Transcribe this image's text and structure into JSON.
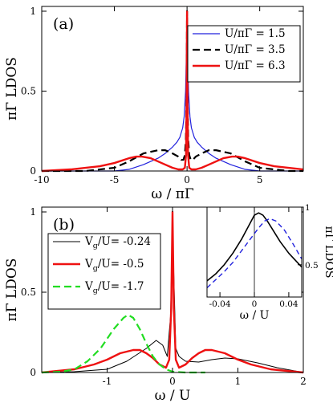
{
  "chart_data": [
    {
      "type": "line",
      "panel_label": "(a)",
      "xlabel": "ω / πΓ",
      "ylabel": "πΓ LDOS",
      "xlim": [
        -10,
        8
      ],
      "ylim": [
        0,
        1.03
      ],
      "xticks": [
        -10,
        -5,
        0,
        5
      ],
      "yticks": [
        0,
        0.5,
        1
      ],
      "legend_position": "top-right",
      "series": [
        {
          "name_parts": [
            "U/πΓ",
            " = 1.5"
          ],
          "color": "#2222dd",
          "dash": "none",
          "x": [
            -10,
            -7,
            -5,
            -4,
            -3,
            -2,
            -1.5,
            -1,
            -0.7,
            -0.5,
            -0.3,
            -0.2,
            -0.1,
            -0.05,
            0,
            0.05,
            0.1,
            0.2,
            0.3,
            0.5,
            0.7,
            1,
            1.5,
            2,
            3,
            4,
            5,
            7,
            8
          ],
          "y": [
            0.0,
            0.0,
            0.0,
            0.01,
            0.04,
            0.08,
            0.11,
            0.15,
            0.18,
            0.21,
            0.27,
            0.34,
            0.5,
            0.72,
            1.0,
            0.72,
            0.5,
            0.34,
            0.27,
            0.21,
            0.18,
            0.15,
            0.11,
            0.08,
            0.04,
            0.01,
            0.0,
            0.0,
            0.0
          ]
        },
        {
          "name_parts": [
            "U/πΓ",
            " = 3.5"
          ],
          "color": "#000000",
          "dash": "9,5",
          "x": [
            -10,
            -7,
            -5,
            -4,
            -3,
            -2,
            -1.5,
            -1,
            -0.6,
            -0.4,
            -0.25,
            -0.15,
            -0.08,
            -0.03,
            0,
            0.03,
            0.08,
            0.15,
            0.25,
            0.4,
            0.6,
            1,
            1.5,
            2,
            3,
            4,
            5,
            7,
            8
          ],
          "y": [
            0.0,
            0.0,
            0.02,
            0.06,
            0.11,
            0.13,
            0.13,
            0.11,
            0.09,
            0.07,
            0.07,
            0.1,
            0.2,
            0.5,
            1.0,
            0.5,
            0.2,
            0.1,
            0.07,
            0.07,
            0.09,
            0.11,
            0.13,
            0.13,
            0.11,
            0.06,
            0.02,
            0.0,
            0.0
          ]
        },
        {
          "name_parts": [
            "U/πΓ",
            " = 6.3"
          ],
          "color": "#ee1111",
          "dash": "none",
          "x": [
            -10,
            -8,
            -7,
            -6,
            -5,
            -4,
            -3.5,
            -3.1,
            -2.5,
            -2,
            -1.5,
            -1,
            -0.6,
            -0.3,
            -0.15,
            -0.07,
            -0.03,
            0,
            0.03,
            0.07,
            0.15,
            0.3,
            0.6,
            1,
            1.5,
            2,
            2.5,
            3.1,
            3.5,
            4,
            5,
            6,
            7,
            8
          ],
          "y": [
            0.0,
            0.01,
            0.02,
            0.03,
            0.05,
            0.08,
            0.09,
            0.09,
            0.08,
            0.06,
            0.04,
            0.02,
            0.01,
            0.01,
            0.02,
            0.1,
            0.45,
            1.0,
            0.45,
            0.1,
            0.02,
            0.01,
            0.01,
            0.02,
            0.04,
            0.06,
            0.08,
            0.09,
            0.09,
            0.08,
            0.05,
            0.03,
            0.02,
            0.01
          ]
        }
      ]
    },
    {
      "type": "line",
      "panel_label": "(b)",
      "xlabel": "ω / U",
      "ylabel": "πΓ LDOS",
      "xlim": [
        -2,
        2
      ],
      "ylim": [
        0,
        1.03
      ],
      "xticks": [
        -1,
        0,
        1,
        2
      ],
      "yticks": [
        0,
        0.5,
        1
      ],
      "legend_position": "left",
      "series": [
        {
          "name_parts": [
            "V",
            "g",
            "/U= -0.24"
          ],
          "color": "#000000",
          "dash": "none",
          "x": [
            -2,
            -1.5,
            -1,
            -0.7,
            -0.4,
            -0.25,
            -0.15,
            -0.08,
            -0.03,
            0,
            0.02,
            0.05,
            0.1,
            0.2,
            0.4,
            0.6,
            0.8,
            1,
            1.3,
            1.6,
            2
          ],
          "y": [
            0.0,
            0.005,
            0.02,
            0.07,
            0.15,
            0.2,
            0.17,
            0.1,
            0.35,
            0.92,
            0.6,
            0.15,
            0.1,
            0.07,
            0.065,
            0.08,
            0.09,
            0.085,
            0.06,
            0.03,
            0.0
          ]
        },
        {
          "name_parts": [
            "V",
            "g",
            "/U= -0.5"
          ],
          "color": "#ee1111",
          "dash": "none",
          "x": [
            -2,
            -1.5,
            -1.2,
            -1,
            -0.8,
            -0.6,
            -0.5,
            -0.4,
            -0.3,
            -0.2,
            -0.1,
            -0.05,
            -0.02,
            0,
            0.02,
            0.05,
            0.1,
            0.2,
            0.3,
            0.4,
            0.5,
            0.6,
            0.8,
            1,
            1.2,
            1.5,
            2
          ],
          "y": [
            0.0,
            0.02,
            0.05,
            0.08,
            0.12,
            0.14,
            0.14,
            0.12,
            0.09,
            0.05,
            0.03,
            0.08,
            0.4,
            1.0,
            0.4,
            0.08,
            0.03,
            0.05,
            0.09,
            0.12,
            0.14,
            0.14,
            0.12,
            0.08,
            0.05,
            0.02,
            0.0
          ]
        },
        {
          "name_parts": [
            "V",
            "g",
            "/U= -1.7"
          ],
          "color": "#22dd22",
          "dash": "9,5",
          "x": [
            -2,
            -1.7,
            -1.5,
            -1.3,
            -1.1,
            -0.9,
            -0.75,
            -0.68,
            -0.6,
            -0.5,
            -0.4,
            -0.3,
            -0.2,
            -0.1,
            0,
            0.2,
            0.5
          ],
          "y": [
            0.0,
            0.005,
            0.02,
            0.07,
            0.15,
            0.27,
            0.34,
            0.36,
            0.34,
            0.27,
            0.18,
            0.1,
            0.05,
            0.02,
            0.005,
            0.0,
            0.0
          ]
        }
      ]
    },
    {
      "type": "line",
      "panel_label": "inset",
      "xlabel": "ω / U",
      "ylabel": "πΓ LDOS",
      "xlim": [
        -0.055,
        0.055
      ],
      "ylim": [
        0.22,
        1.0
      ],
      "xticks": [
        -0.04,
        0,
        0.04
      ],
      "yticks": [
        0.5,
        1
      ],
      "series": [
        {
          "name": "",
          "color": "#000000",
          "dash": "none",
          "x": [
            -0.055,
            -0.045,
            -0.035,
            -0.025,
            -0.015,
            -0.005,
            0.0,
            0.005,
            0.01,
            0.015,
            0.02,
            0.03,
            0.04,
            0.05,
            0.055
          ],
          "y": [
            0.36,
            0.42,
            0.5,
            0.6,
            0.72,
            0.86,
            0.93,
            0.95,
            0.93,
            0.88,
            0.82,
            0.7,
            0.6,
            0.52,
            0.48
          ]
        },
        {
          "name": "",
          "color": "#2222dd",
          "dash": "6,4",
          "x": [
            -0.055,
            -0.045,
            -0.035,
            -0.025,
            -0.015,
            -0.005,
            0.005,
            0.012,
            0.018,
            0.025,
            0.035,
            0.045,
            0.055
          ],
          "y": [
            0.3,
            0.37,
            0.44,
            0.52,
            0.62,
            0.72,
            0.82,
            0.88,
            0.9,
            0.88,
            0.8,
            0.68,
            0.55
          ]
        }
      ]
    }
  ]
}
